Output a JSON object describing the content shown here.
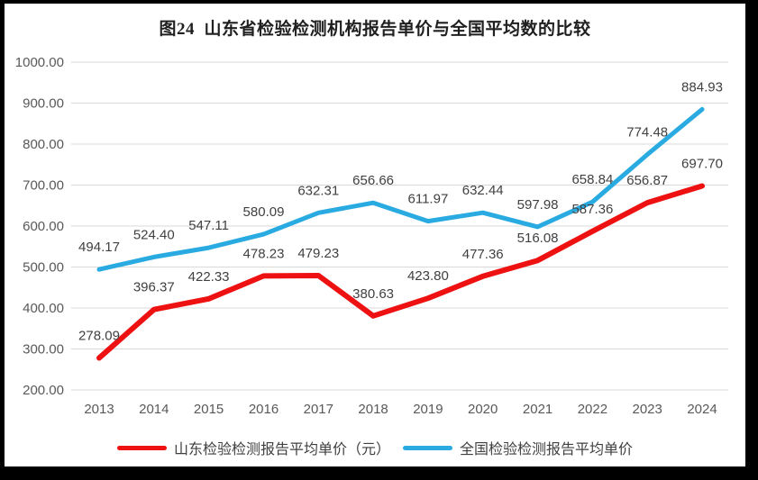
{
  "title": "图24  山东省检验检测机构报告单价与全国平均数的比较",
  "chart_data": {
    "type": "line",
    "title": "图24  山东省检验检测机构报告单价与全国平均数的比较",
    "categories": [
      "2013",
      "2014",
      "2015",
      "2016",
      "2017",
      "2018",
      "2019",
      "2020",
      "2021",
      "2022",
      "2023",
      "2024"
    ],
    "series": [
      {
        "name": "山东检验检测报告平均单价（元）",
        "color": "#ee1111",
        "values": [
          278.09,
          396.37,
          422.33,
          478.23,
          479.23,
          380.63,
          423.8,
          477.36,
          516.08,
          587.36,
          656.87,
          697.7
        ]
      },
      {
        "name": "全国检验检测报告平均单价",
        "color": "#29abe2",
        "values": [
          494.17,
          524.4,
          547.11,
          580.09,
          632.31,
          656.66,
          611.97,
          632.44,
          597.98,
          658.84,
          774.48,
          884.93
        ]
      }
    ],
    "ylim": [
      200,
      1000
    ],
    "ytick_step": 100,
    "ytick_labels": [
      "200.00",
      "300.00",
      "400.00",
      "500.00",
      "600.00",
      "700.00",
      "800.00",
      "900.00",
      "1000.00"
    ],
    "xlabel": "",
    "ylabel": "",
    "grid": "horizontal",
    "legend_position": "bottom",
    "data_labels": true
  },
  "colors": {
    "shandong_line": "#ee1111",
    "national_line": "#29abe2",
    "gridline": "#d9d9d9",
    "axis_label": "#595959",
    "data_label": "#404040",
    "title_text": "#1f1f1f",
    "chart_background": "#ffffff",
    "frame_background": "#000000"
  }
}
